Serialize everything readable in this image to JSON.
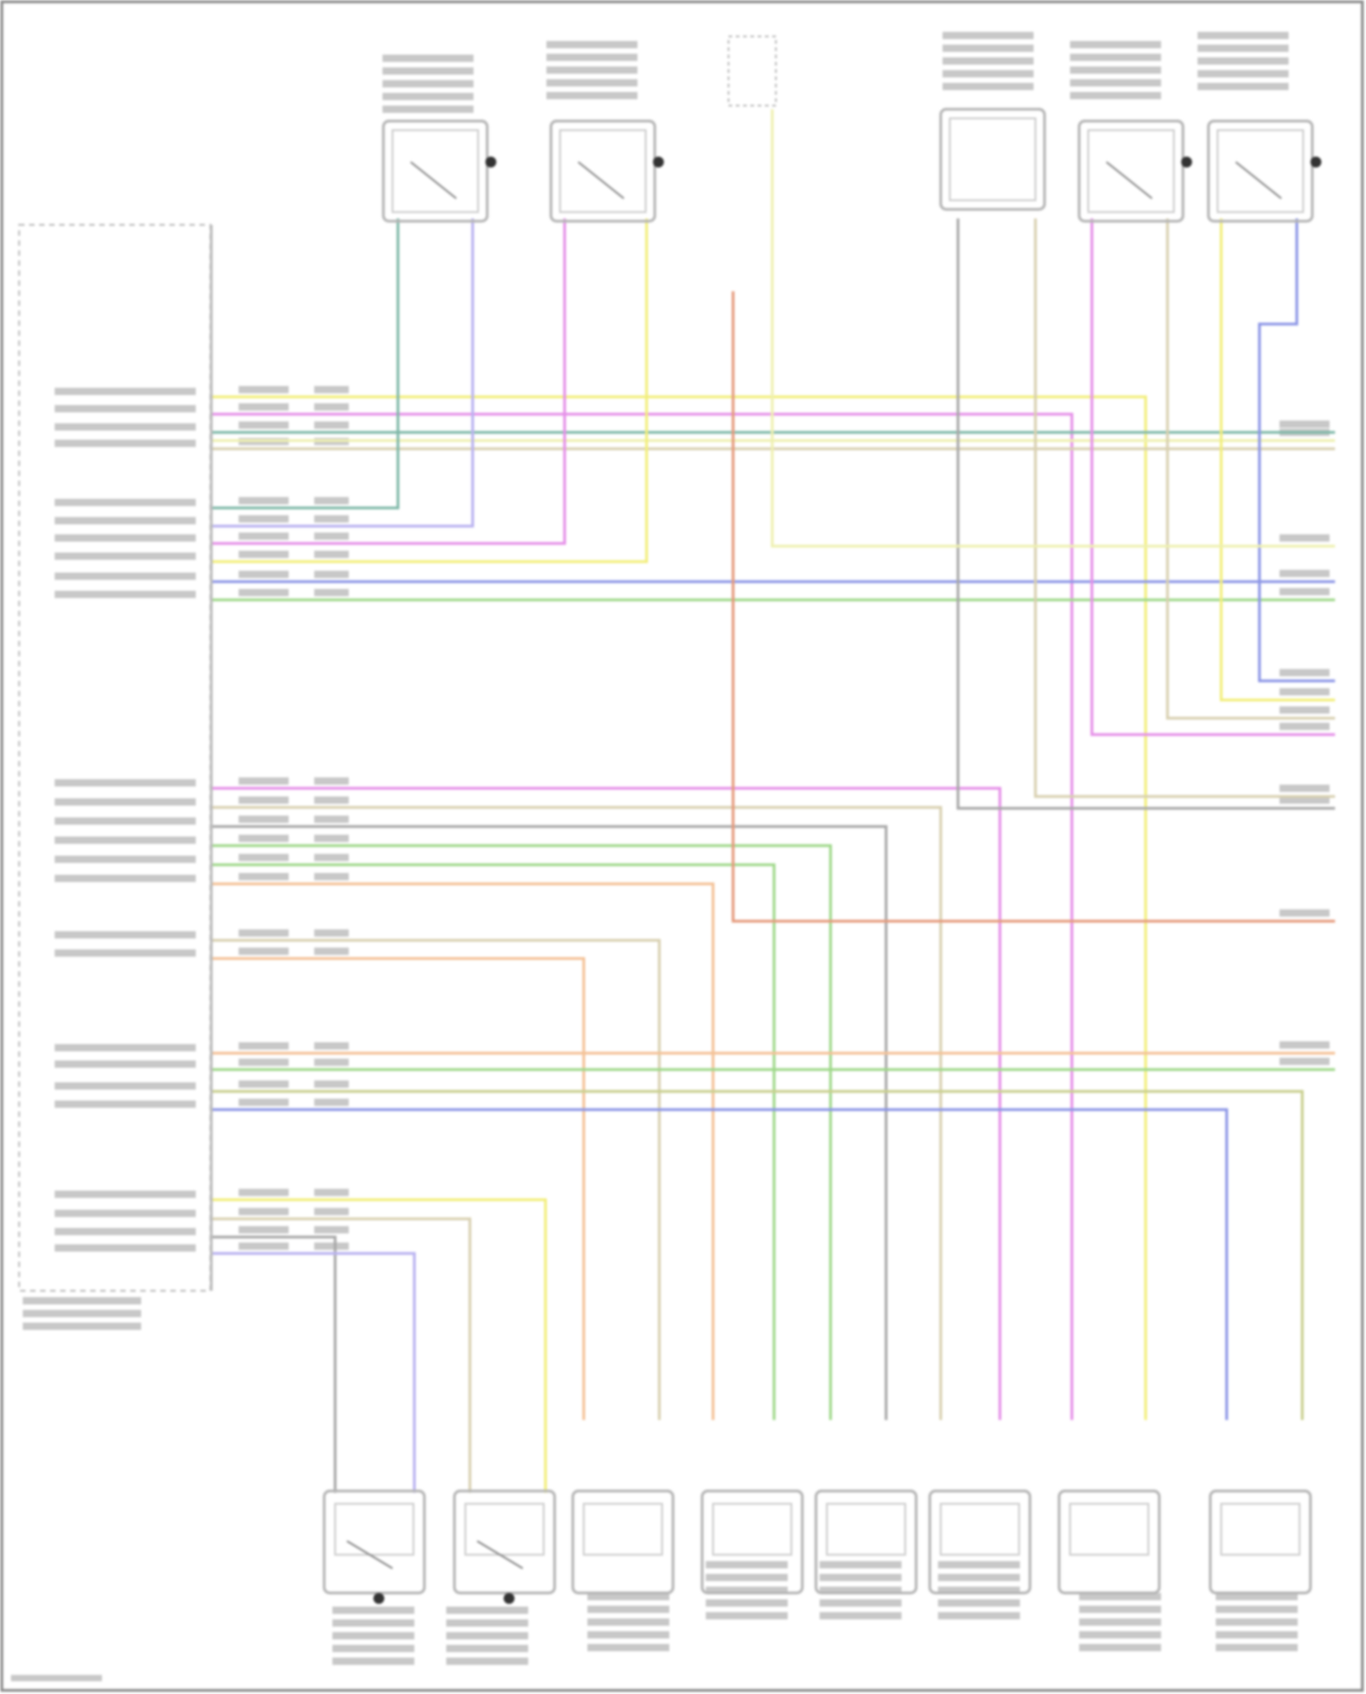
{
  "diagram": {
    "wire_colors": {
      "yellow": "#f2ee7a",
      "magenta": "#e58fe8",
      "teal": "#7fb8a8",
      "pale_yellow": "#eef0b0",
      "lavender": "#b9b2f0",
      "blue": "#8c96e6",
      "green": "#9fd88a",
      "gray": "#a8a8a8",
      "tan": "#d8d0b0",
      "orange": "#f4c196",
      "orange_red": "#e59a7c",
      "olive": "#c9cf8e"
    },
    "frame_color": "#8a8a8a",
    "component_color": "#b5b5b5",
    "label_color": "#9a9a9a"
  }
}
